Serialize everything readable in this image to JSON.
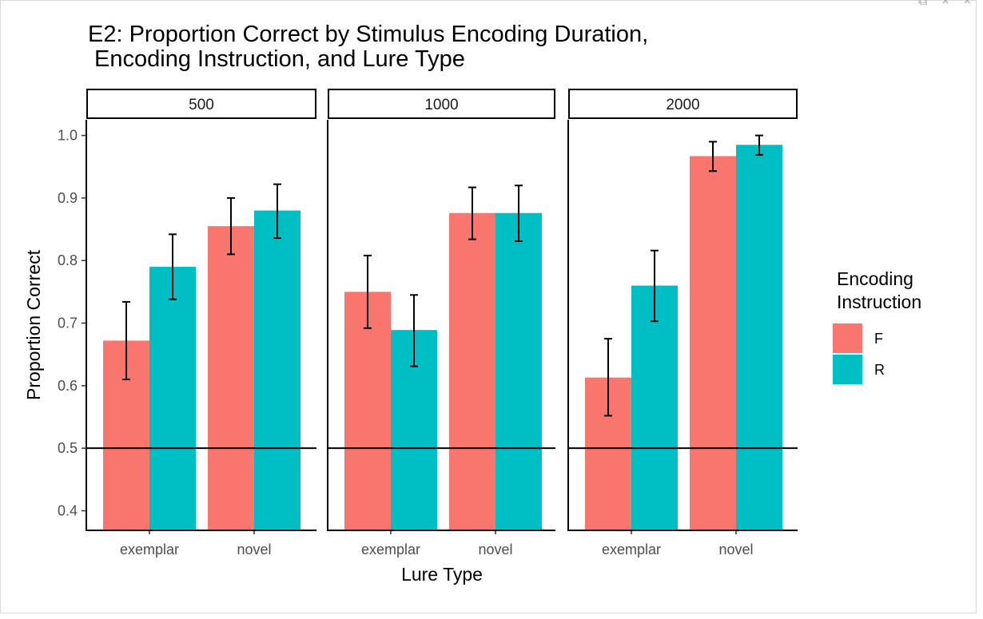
{
  "window": {
    "controls": [
      "⧉",
      "×",
      "×"
    ]
  },
  "chart_data": {
    "type": "bar",
    "title": "E2: Proportion Correct by Stimulus Encoding Duration,\n Encoding Instruction, and Lure Type",
    "title_lines": [
      "E2: Proportion Correct by Stimulus Encoding Duration,",
      " Encoding Instruction, and Lure Type"
    ],
    "xlabel": "Lure Type",
    "ylabel": "Proportion Correct",
    "ylim": [
      0.37,
      1.025
    ],
    "yticks": [
      0.4,
      0.5,
      0.6,
      0.7,
      0.8,
      0.9,
      1.0
    ],
    "ytick_labels": [
      "0.4",
      "0.5",
      "0.6",
      "0.7",
      "0.8",
      "0.9",
      "1.0"
    ],
    "reference_line": 0.5,
    "categories": [
      "exemplar",
      "novel"
    ],
    "legend": {
      "title_lines": [
        "Encoding",
        "Instruction"
      ],
      "entries": [
        {
          "name": "F",
          "color": "#F8766D"
        },
        {
          "name": "R",
          "color": "#00BFC4"
        }
      ],
      "position": "right"
    },
    "facets": [
      {
        "label": "500",
        "series": [
          {
            "name": "F",
            "values": [
              0.672,
              0.855
            ],
            "errors": [
              [
                0.61,
                0.734
              ],
              [
                0.81,
                0.9
              ]
            ]
          },
          {
            "name": "R",
            "values": [
              0.79,
              0.88
            ],
            "errors": [
              [
                0.738,
                0.842
              ],
              [
                0.836,
                0.922
              ]
            ]
          }
        ]
      },
      {
        "label": "1000",
        "series": [
          {
            "name": "F",
            "values": [
              0.75,
              0.876
            ],
            "errors": [
              [
                0.692,
                0.808
              ],
              [
                0.834,
                0.917
              ]
            ]
          },
          {
            "name": "R",
            "values": [
              0.689,
              0.876
            ],
            "errors": [
              [
                0.631,
                0.745
              ],
              [
                0.831,
                0.92
              ]
            ]
          }
        ]
      },
      {
        "label": "2000",
        "series": [
          {
            "name": "F",
            "values": [
              0.613,
              0.967
            ],
            "errors": [
              [
                0.552,
                0.675
              ],
              [
                0.943,
                0.99
              ]
            ]
          },
          {
            "name": "R",
            "values": [
              0.76,
              0.985
            ],
            "errors": [
              [
                0.703,
                0.816
              ],
              [
                0.969,
                1.0
              ]
            ]
          }
        ]
      }
    ],
    "colors": {
      "F": "#F8766D",
      "R": "#00BFC4",
      "axis": "#000000",
      "tick_text": "#4d4d4d"
    }
  }
}
